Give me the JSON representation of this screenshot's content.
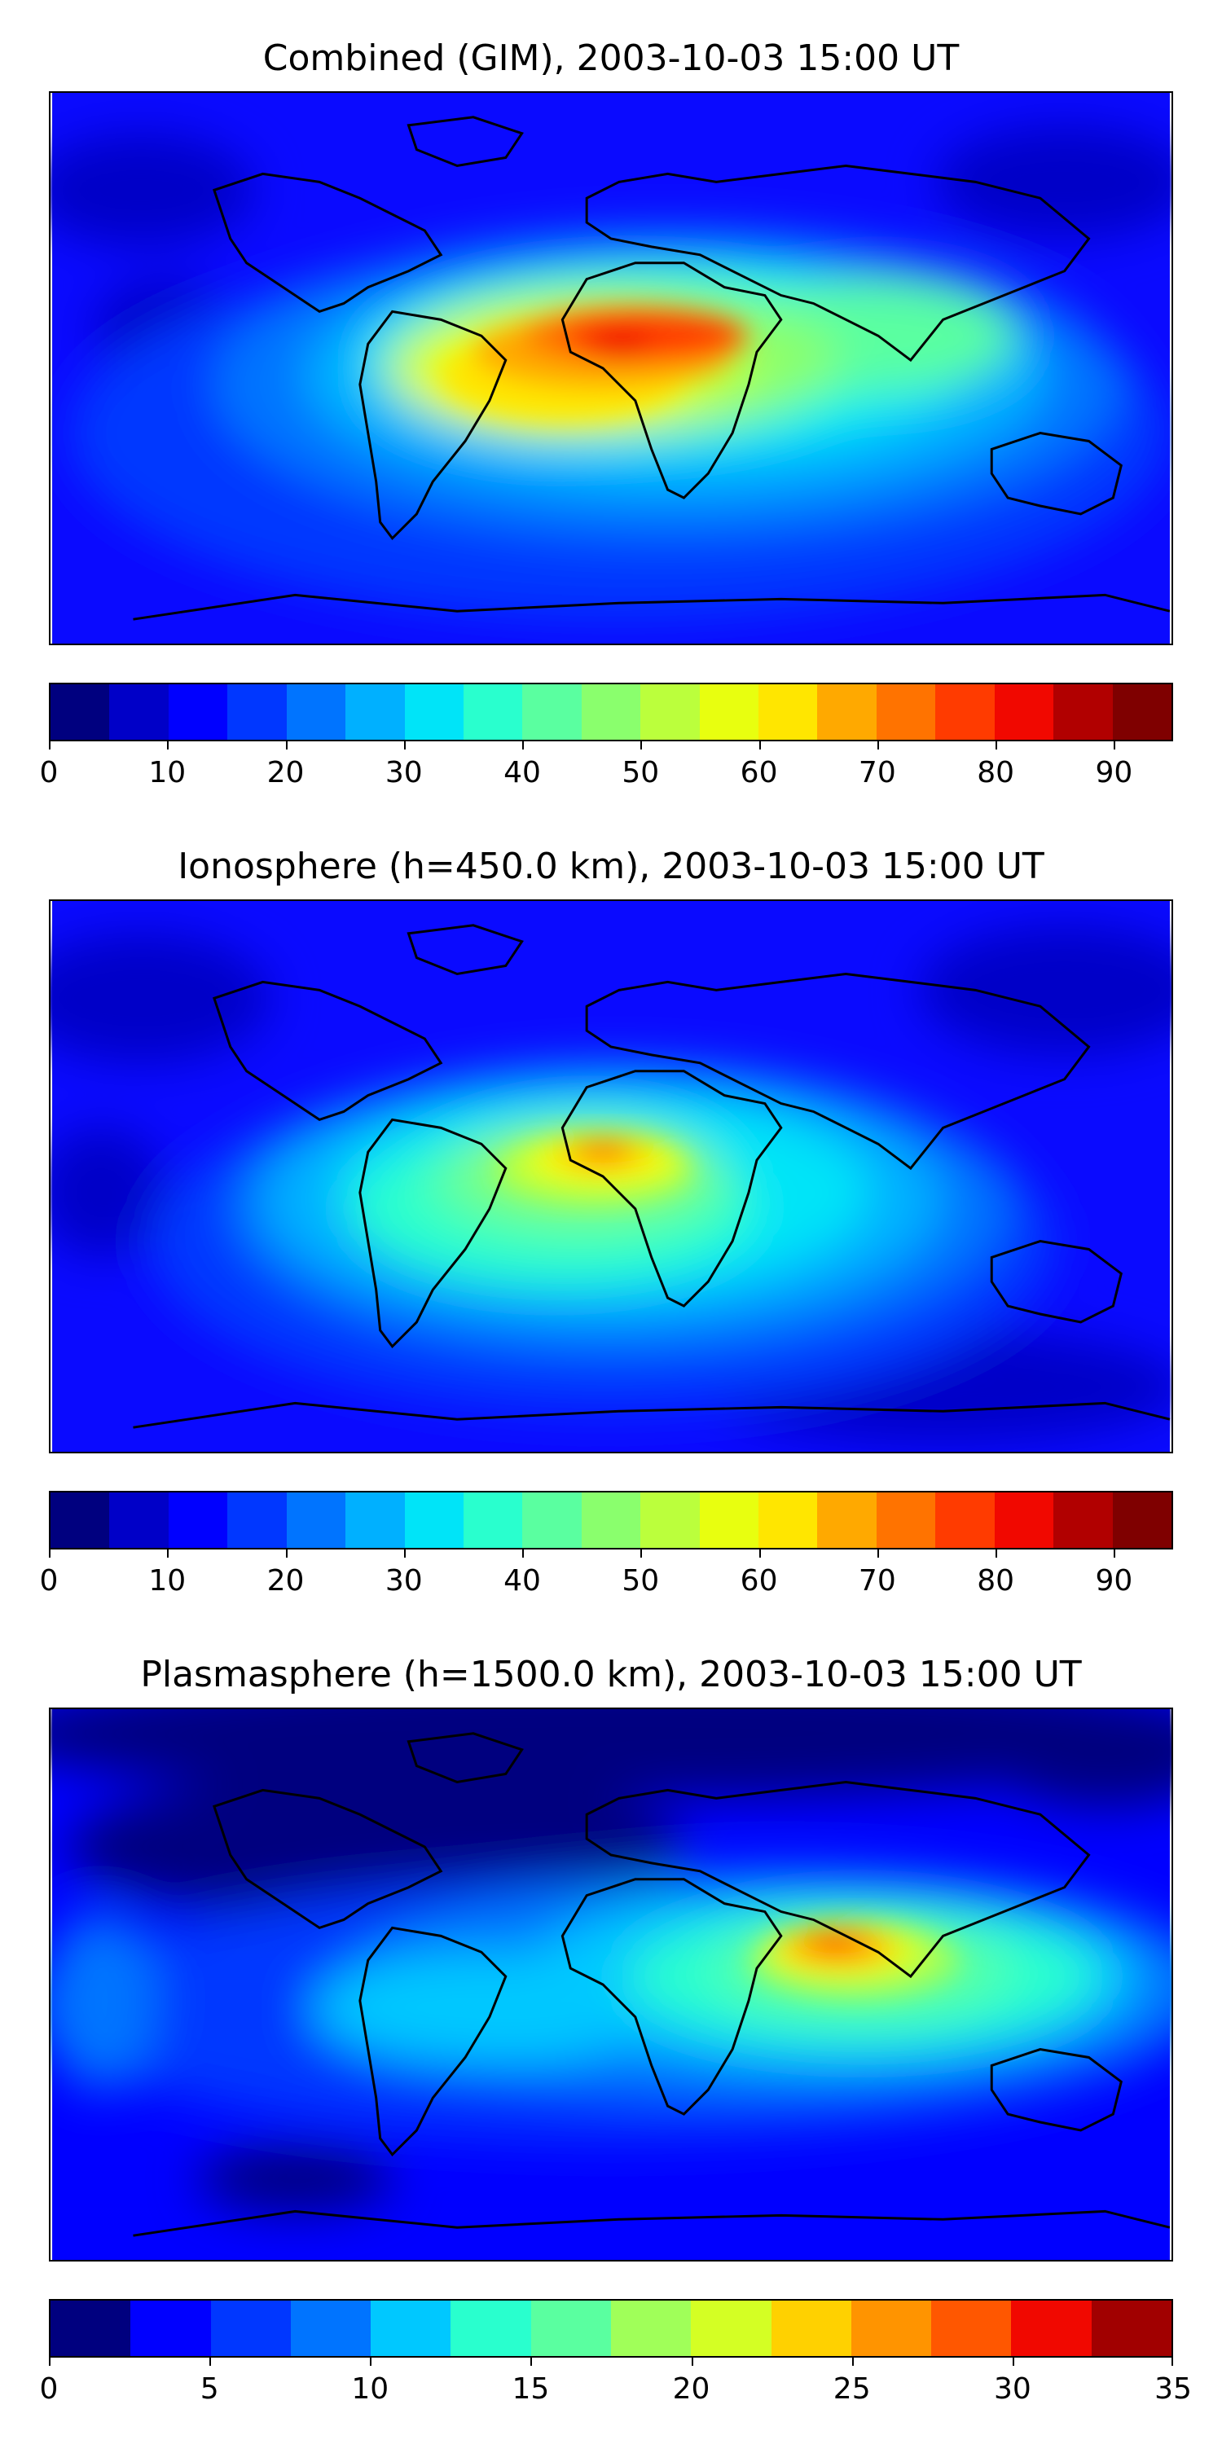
{
  "panels": [
    {
      "title": "Combined (GIM), 2003-10-03 15:00 UT",
      "colorbar": {
        "min": 0,
        "max": 95,
        "step": 5,
        "ticks": [
          0,
          10,
          20,
          30,
          40,
          50,
          60,
          70,
          80,
          90
        ],
        "tick_labels": [
          "0",
          "10",
          "20",
          "30",
          "40",
          "50",
          "60",
          "70",
          "80",
          "90"
        ],
        "colors": [
          "#00007f",
          "#0000c8",
          "#0000ff",
          "#0037ff",
          "#0074ff",
          "#00b0ff",
          "#00e4f8",
          "#29ffce",
          "#5affa0",
          "#8aff6d",
          "#bbff3c",
          "#e8ff0f",
          "#ffe600",
          "#ffa900",
          "#ff7300",
          "#ff3b00",
          "#f10800",
          "#b10000",
          "#7f0000"
        ]
      },
      "map_features": {
        "peak_region": "Central Africa / Gulf of Guinea",
        "peak_value_approx": 82,
        "background_value_approx": 8
      }
    },
    {
      "title": "Ionosphere  (h=450.0 km), 2003-10-03 15:00 UT",
      "colorbar": {
        "min": 0,
        "max": 95,
        "step": 5,
        "ticks": [
          0,
          10,
          20,
          30,
          40,
          50,
          60,
          70,
          80,
          90
        ],
        "tick_labels": [
          "0",
          "10",
          "20",
          "30",
          "40",
          "50",
          "60",
          "70",
          "80",
          "90"
        ],
        "colors": [
          "#00007f",
          "#0000c8",
          "#0000ff",
          "#0037ff",
          "#0074ff",
          "#00b0ff",
          "#00e4f8",
          "#29ffce",
          "#5affa0",
          "#8aff6d",
          "#bbff3c",
          "#e8ff0f",
          "#ffe600",
          "#ffa900",
          "#ff7300",
          "#ff3b00",
          "#f10800",
          "#b10000",
          "#7f0000"
        ]
      },
      "map_features": {
        "peak_region": "North-West Africa",
        "peak_value_approx": 72,
        "background_value_approx": 8
      }
    },
    {
      "title": "Plasmasphere (h=1500.0 km), 2003-10-03 15:00 UT",
      "colorbar": {
        "min": 0,
        "max": 35,
        "step": 2.5,
        "ticks": [
          0,
          5,
          10,
          15,
          20,
          25,
          30,
          35
        ],
        "tick_labels": [
          "0",
          "5",
          "10",
          "15",
          "20",
          "25",
          "30",
          "35"
        ],
        "colors": [
          "#00007f",
          "#0000ff",
          "#0037ff",
          "#0074ff",
          "#00c8ff",
          "#29ffce",
          "#5affa0",
          "#a0ff59",
          "#d4ff24",
          "#ffd100",
          "#ff9400",
          "#ff5700",
          "#f10800",
          "#a10000"
        ]
      },
      "map_features": {
        "peak_region": "Arabian Sea / India",
        "peak_value_approx": 28,
        "background_value_approx": 4
      }
    }
  ]
}
